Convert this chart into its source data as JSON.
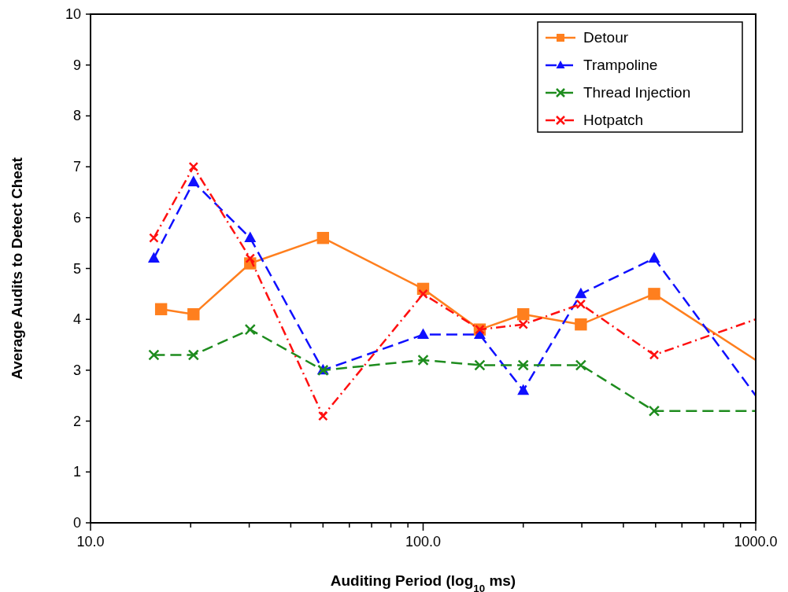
{
  "chart_data": {
    "type": "line",
    "xlabel": "Auditing Period (log$_{10}$ ms)",
    "ylabel": "Average Audits to Detect Cheat",
    "log": "x",
    "xlim": [
      10,
      1000
    ],
    "ylim": [
      0,
      10
    ],
    "xticks": [
      {
        "value": 10,
        "label": "10.0"
      },
      {
        "value": 20,
        "label": null
      },
      {
        "value": 30,
        "label": null
      },
      {
        "value": 40,
        "label": null
      },
      {
        "value": 50,
        "label": null
      },
      {
        "value": 60,
        "label": null
      },
      {
        "value": 70,
        "label": null
      },
      {
        "value": 80,
        "label": null
      },
      {
        "value": 90,
        "label": null
      },
      {
        "value": 100,
        "label": "100.0"
      },
      {
        "value": 200,
        "label": null
      },
      {
        "value": 300,
        "label": null
      },
      {
        "value": 400,
        "label": null
      },
      {
        "value": 500,
        "label": null
      },
      {
        "value": 600,
        "label": null
      },
      {
        "value": 700,
        "label": null
      },
      {
        "value": 800,
        "label": null
      },
      {
        "value": 900,
        "label": null
      },
      {
        "value": 1000,
        "label": "1000.0"
      }
    ],
    "yticks": [
      0,
      1,
      2,
      3,
      4,
      5,
      6,
      7,
      8,
      9,
      10
    ],
    "grid": false,
    "legend": "top right",
    "series": [
      {
        "name": "Detour",
        "color": "#ff7f1e",
        "marker": "square",
        "line_style": "solid",
        "x": [
          16.3,
          20.4,
          30.2,
          50,
          100,
          148,
          200,
          298,
          495,
          1000
        ],
        "values": [
          4.2,
          4.1,
          5.1,
          5.6,
          4.6,
          3.8,
          4.1,
          3.9,
          4.5,
          3.2
        ]
      },
      {
        "name": "Trampoline",
        "color": "#1010ff",
        "marker": "triangle",
        "line_style": "dashed",
        "x": [
          15.5,
          20.4,
          30.2,
          50,
          100,
          148,
          200,
          298,
          495,
          1000
        ],
        "values": [
          5.2,
          6.7,
          5.6,
          3.0,
          3.7,
          3.7,
          2.6,
          4.5,
          5.2,
          2.5
        ]
      },
      {
        "name": "Thread Injection",
        "color": "#1e8c1e",
        "marker": "cross",
        "line_style": "dashed",
        "x": [
          15.5,
          20.4,
          30.2,
          50,
          100,
          148,
          200,
          298,
          495,
          1000
        ],
        "values": [
          3.3,
          3.3,
          3.8,
          3.0,
          3.2,
          3.1,
          3.1,
          3.1,
          2.2,
          2.2
        ]
      },
      {
        "name": "Hotpatch",
        "color": "#ff1010",
        "marker": "cross",
        "line_style": "dashdot",
        "x": [
          15.5,
          20.4,
          30.2,
          50,
          100,
          148,
          200,
          298,
          495,
          1000
        ],
        "values": [
          5.6,
          7.0,
          5.2,
          2.1,
          4.5,
          3.8,
          3.9,
          4.3,
          3.3,
          4.0
        ]
      }
    ]
  }
}
